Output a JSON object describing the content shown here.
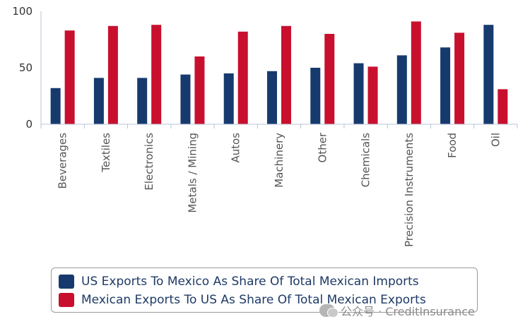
{
  "chart_data": {
    "type": "bar",
    "title": "",
    "xlabel": "",
    "ylabel": "",
    "ylim": [
      0,
      100
    ],
    "yticks": [
      "0",
      "50",
      "100"
    ],
    "grid": false,
    "legend_position": "bottom",
    "categories": [
      "Beverages",
      "Textiles",
      "Electronics",
      "Metals / Mining",
      "Autos",
      "Machinery",
      "Other",
      "Chemicals",
      "Precision Instruments",
      "Food",
      "Oil"
    ],
    "series": [
      {
        "name": "US Exports To Mexico As Share Of Total Mexican Imports",
        "color": "#173a6e",
        "values": [
          32,
          41,
          41,
          44,
          45,
          47,
          50,
          54,
          61,
          68,
          88
        ]
      },
      {
        "name": "Mexican Exports To US As Share Of Total Mexican Exports",
        "color": "#c8102e",
        "values": [
          83,
          87,
          88,
          60,
          82,
          87,
          80,
          51,
          91,
          81,
          31
        ]
      }
    ]
  },
  "watermark": {
    "text": "公众号 · CreditInsurance",
    "icon": "wechat-icon"
  }
}
